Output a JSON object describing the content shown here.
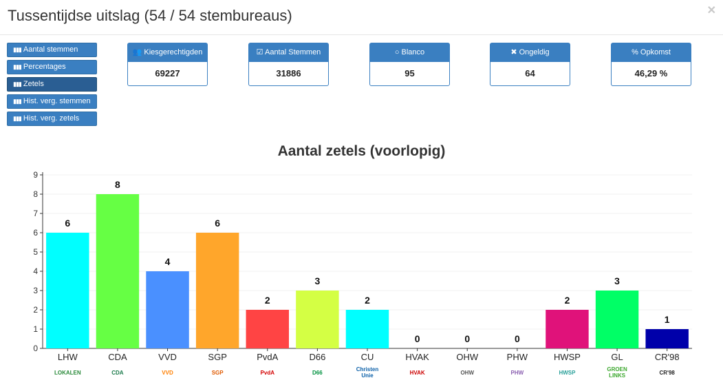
{
  "header": {
    "title": "Tussentijdse uitslag (54 / 54 stembureaus)",
    "close_icon": "close-icon"
  },
  "sidebar": {
    "items": [
      {
        "label": "Aantal stemmen",
        "icon": "bar-chart-icon",
        "active": false
      },
      {
        "label": "Percentages",
        "icon": "bar-chart-icon",
        "active": false
      },
      {
        "label": "Zetels",
        "icon": "bar-chart-icon",
        "active": true
      },
      {
        "label": "Hist. verg. stemmen",
        "icon": "bar-chart-icon",
        "active": false
      },
      {
        "label": "Hist. verg. zetels",
        "icon": "bar-chart-icon",
        "active": false
      }
    ]
  },
  "stats": [
    {
      "label": "Kiesgerechtigden",
      "value": "69227",
      "icon": "users-icon"
    },
    {
      "label": "Aantal Stemmen",
      "value": "31886",
      "icon": "check-square-icon"
    },
    {
      "label": "Blanco",
      "value": "95",
      "icon": "circle-icon"
    },
    {
      "label": "Ongeldig",
      "value": "64",
      "icon": "times-icon"
    },
    {
      "label": "Opkomst",
      "value": "46,29 %",
      "icon": "percent-icon"
    }
  ],
  "chart_data": {
    "type": "bar",
    "title": "Aantal zetels (voorlopig)",
    "xlabel": "",
    "ylabel": "",
    "ylim": [
      0,
      9
    ],
    "yticks": [
      0,
      1,
      2,
      3,
      4,
      5,
      6,
      7,
      8,
      9
    ],
    "grid": true,
    "categories": [
      "LHW",
      "CDA",
      "VVD",
      "SGP",
      "PvdA",
      "D66",
      "CU",
      "HVAK",
      "OHW",
      "PHW",
      "HWSP",
      "GL",
      "CR'98"
    ],
    "values": [
      6,
      8,
      4,
      6,
      2,
      3,
      2,
      0,
      0,
      0,
      2,
      3,
      1
    ],
    "colors": [
      "#00ffff",
      "#66ff44",
      "#4a90ff",
      "#ffa62b",
      "#ff4444",
      "#d4ff44",
      "#00ffff",
      "#888888",
      "#888888",
      "#888888",
      "#e0127a",
      "#00ff66",
      "#0000aa"
    ]
  },
  "logos": [
    {
      "text": "LOKALEN",
      "color": "#2a8a3a"
    },
    {
      "text": "CDA",
      "color": "#1a7a4a"
    },
    {
      "text": "VVD",
      "color": "#ff7f00"
    },
    {
      "text": "SGP",
      "color": "#e05a00"
    },
    {
      "text": "PvdA",
      "color": "#d40000"
    },
    {
      "text": "D66",
      "color": "#00923f"
    },
    {
      "text": "Christen Unie",
      "color": "#0a5fa8"
    },
    {
      "text": "HVAK",
      "color": "#c00"
    },
    {
      "text": "OHW",
      "color": "#555"
    },
    {
      "text": "PHW",
      "color": "#8a5fb0"
    },
    {
      "text": "HWSP",
      "color": "#2aa09a"
    },
    {
      "text": "GROEN LINKS",
      "color": "#3ca82e"
    },
    {
      "text": "CR'98",
      "color": "#222"
    }
  ]
}
